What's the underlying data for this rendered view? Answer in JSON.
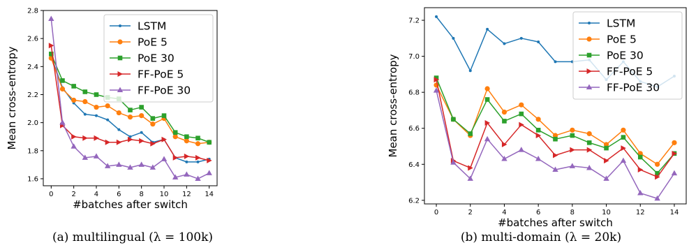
{
  "chart_data": [
    {
      "type": "line",
      "caption": "(a) multilingual (λ = 100k)",
      "xlabel": "#batches after switch",
      "ylabel": "Mean cross-entropy",
      "x": [
        0,
        1,
        2,
        3,
        4,
        5,
        6,
        7,
        8,
        9,
        10,
        11,
        12,
        13,
        14
      ],
      "xticks": [
        0,
        2,
        4,
        6,
        8,
        10,
        12,
        14
      ],
      "xlim": [
        -0.7,
        14.7
      ],
      "ylim": [
        1.55,
        2.8
      ],
      "yticks": [
        1.6,
        1.8,
        2.0,
        2.2,
        2.4,
        2.6,
        2.8
      ],
      "ytick_labels": [
        "1.6",
        "1.8",
        "2.0",
        "2.2",
        "2.4",
        "2.6",
        "2.8"
      ],
      "legend": "top-right",
      "series": [
        {
          "name": "LSTM",
          "color": "#1f77b4",
          "marker": "dot",
          "values": [
            2.47,
            2.25,
            2.14,
            2.06,
            2.05,
            2.02,
            1.95,
            1.9,
            1.93,
            1.86,
            1.88,
            1.75,
            1.72,
            1.72,
            1.74
          ]
        },
        {
          "name": "PoE 5",
          "color": "#ff7f0e",
          "marker": "circle",
          "values": [
            2.46,
            2.24,
            2.16,
            2.15,
            2.11,
            2.12,
            2.07,
            2.04,
            2.05,
            1.99,
            2.03,
            1.9,
            1.87,
            1.85,
            1.86
          ]
        },
        {
          "name": "PoE 30",
          "color": "#2ca02c",
          "marker": "square",
          "values": [
            2.49,
            2.3,
            2.26,
            2.22,
            2.2,
            2.18,
            2.17,
            2.09,
            2.11,
            2.03,
            2.05,
            1.93,
            1.9,
            1.89,
            1.86
          ]
        },
        {
          "name": "FF-PoE 5",
          "color": "#d62728",
          "marker": "triangle-right",
          "values": [
            2.55,
            1.98,
            1.9,
            1.89,
            1.89,
            1.86,
            1.86,
            1.88,
            1.87,
            1.85,
            1.88,
            1.75,
            1.76,
            1.75,
            1.73
          ]
        },
        {
          "name": "FF-PoE 30",
          "color": "#9467bd",
          "marker": "triangle-up",
          "values": [
            2.74,
            2.0,
            1.83,
            1.75,
            1.76,
            1.69,
            1.7,
            1.68,
            1.7,
            1.68,
            1.74,
            1.61,
            1.63,
            1.6,
            1.64
          ]
        }
      ]
    },
    {
      "type": "line",
      "caption": "(b) multi-domain (λ = 20k)",
      "xlabel": "#batches after switch",
      "ylabel": "Mean cross-entropy",
      "x": [
        0,
        1,
        2,
        3,
        4,
        5,
        6,
        7,
        8,
        9,
        10,
        11,
        12,
        13,
        14
      ],
      "xticks": [
        0,
        2,
        4,
        6,
        8,
        10,
        12,
        14
      ],
      "xlim": [
        -0.7,
        14.7
      ],
      "ylim": [
        6.18,
        7.27
      ],
      "yticks": [
        6.2,
        6.4,
        6.6,
        6.8,
        7.0,
        7.2
      ],
      "ytick_labels": [
        "6.2",
        "6.4",
        "6.6",
        "6.8",
        "7.0",
        "7.2"
      ],
      "legend": "top-right",
      "series": [
        {
          "name": "LSTM",
          "color": "#1f77b4",
          "marker": "dot",
          "values": [
            7.22,
            7.1,
            6.92,
            7.15,
            7.07,
            7.1,
            7.08,
            6.97,
            6.97,
            6.98,
            6.87,
            6.97,
            6.86,
            6.83,
            6.89
          ]
        },
        {
          "name": "PoE 5",
          "color": "#ff7f0e",
          "marker": "circle",
          "values": [
            6.84,
            6.65,
            6.56,
            6.82,
            6.69,
            6.73,
            6.65,
            6.56,
            6.59,
            6.57,
            6.51,
            6.59,
            6.46,
            6.4,
            6.52
          ]
        },
        {
          "name": "PoE 30",
          "color": "#2ca02c",
          "marker": "square",
          "values": [
            6.88,
            6.65,
            6.57,
            6.76,
            6.64,
            6.68,
            6.59,
            6.54,
            6.56,
            6.52,
            6.49,
            6.55,
            6.44,
            6.35,
            6.46
          ]
        },
        {
          "name": "FF-PoE 5",
          "color": "#d62728",
          "marker": "triangle-right",
          "values": [
            6.87,
            6.42,
            6.38,
            6.63,
            6.51,
            6.62,
            6.56,
            6.45,
            6.48,
            6.48,
            6.42,
            6.49,
            6.37,
            6.33,
            6.46
          ]
        },
        {
          "name": "FF-PoE 30",
          "color": "#9467bd",
          "marker": "triangle-up",
          "values": [
            6.81,
            6.41,
            6.32,
            6.54,
            6.43,
            6.48,
            6.43,
            6.37,
            6.39,
            6.38,
            6.32,
            6.42,
            6.24,
            6.21,
            6.35
          ]
        }
      ]
    }
  ]
}
